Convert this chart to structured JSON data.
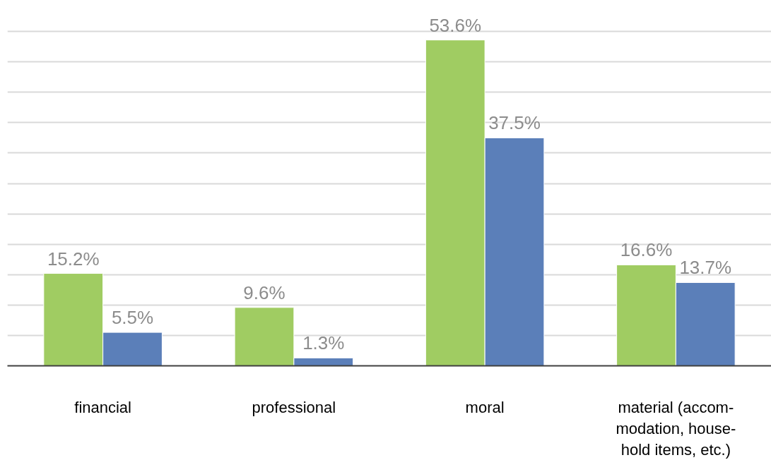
{
  "chart_data": {
    "type": "bar",
    "categories": [
      "financial",
      "professional",
      "moral",
      "material (accom-\nmodation, house-\nhold items, etc.)"
    ],
    "series": [
      {
        "color": "#a0cc62",
        "values": [
          15.2,
          9.6,
          53.6,
          16.6
        ],
        "value_labels": [
          "15.2%",
          "9.6%",
          "53.6%",
          "16.6%"
        ]
      },
      {
        "color": "#5b7fb9",
        "values": [
          5.5,
          1.3,
          37.5,
          13.7
        ],
        "value_labels": [
          "5.5%",
          "1.3%",
          "37.5%",
          "13.7%"
        ]
      }
    ],
    "grid": "y",
    "tick_labels": "x"
  }
}
